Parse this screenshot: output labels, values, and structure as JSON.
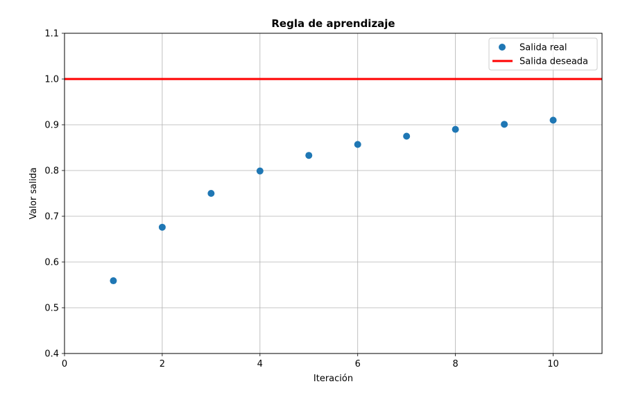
{
  "chart_data": {
    "type": "scatter",
    "title": "Regla de aprendizaje",
    "xlabel": "Iteración",
    "ylabel": "Valor salida",
    "xlim": [
      0,
      11
    ],
    "ylim": [
      0.4,
      1.1
    ],
    "xticks": [
      0,
      2,
      4,
      6,
      8,
      10
    ],
    "yticks": [
      0.4,
      0.5,
      0.6,
      0.7,
      0.8,
      0.9,
      1.0,
      1.1
    ],
    "xtick_labels": [
      "0",
      "2",
      "4",
      "6",
      "8",
      "10"
    ],
    "ytick_labels": [
      "0.4",
      "0.5",
      "0.6",
      "0.7",
      "0.8",
      "0.9",
      "1.0",
      "1.1"
    ],
    "grid": true,
    "legend_position": "top-right",
    "series": [
      {
        "name": "Salida real",
        "kind": "scatter",
        "color": "#1f77b4",
        "x": [
          1,
          2,
          3,
          4,
          5,
          6,
          7,
          8,
          9,
          10
        ],
        "y": [
          0.559,
          0.676,
          0.75,
          0.799,
          0.833,
          0.857,
          0.875,
          0.89,
          0.901,
          0.91
        ]
      },
      {
        "name": "Salida deseada",
        "kind": "hline",
        "color": "#ff0000",
        "y": 1.0
      }
    ]
  }
}
